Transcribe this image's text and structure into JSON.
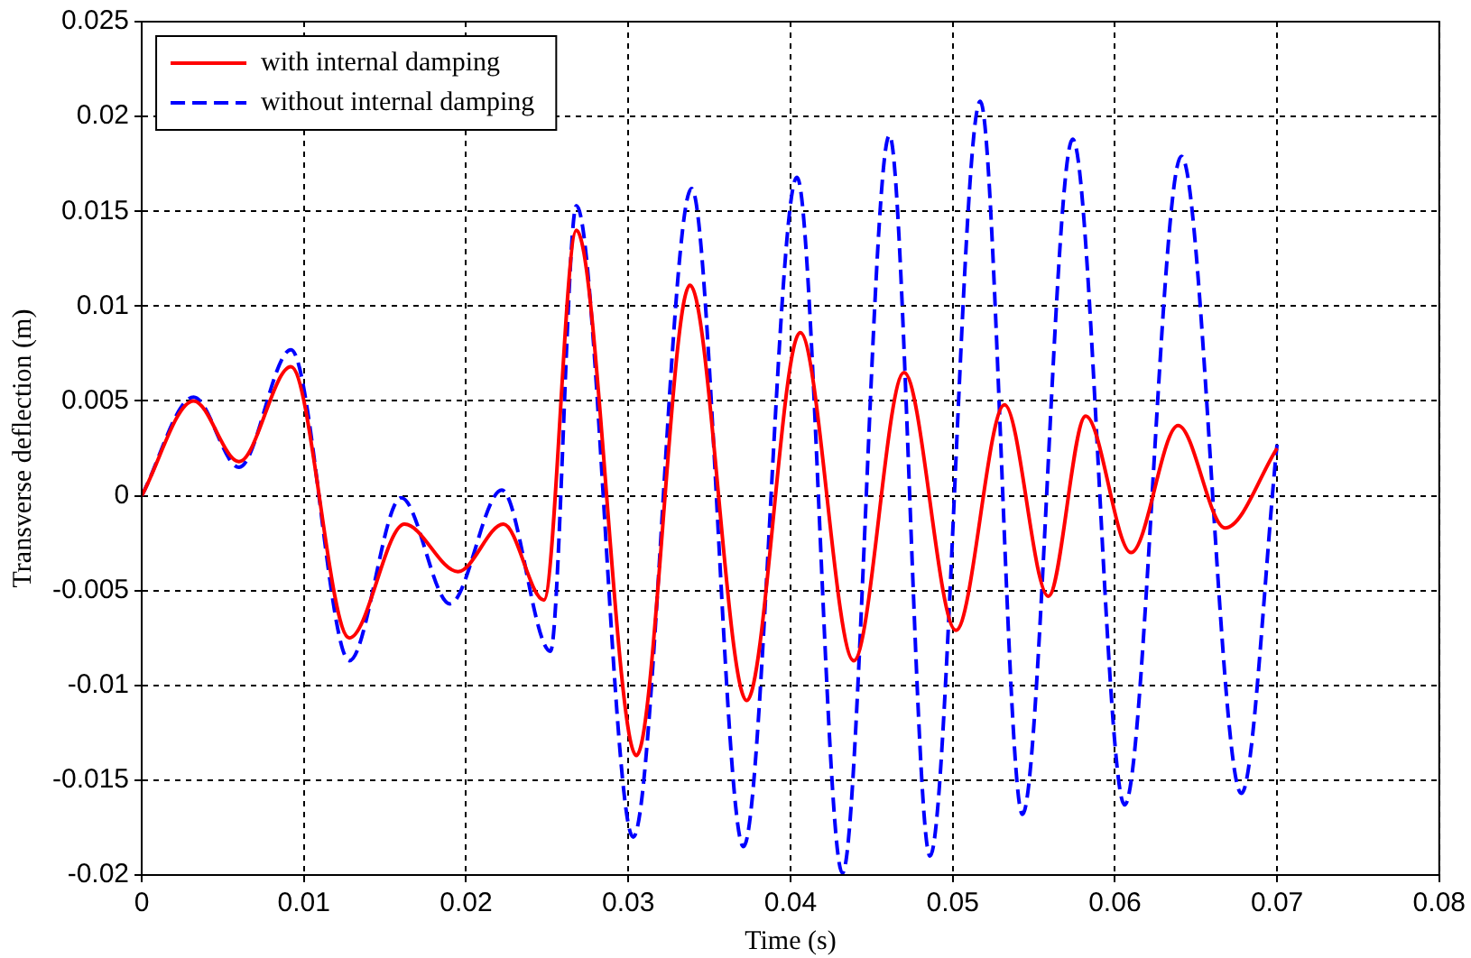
{
  "chart_data": {
    "type": "line",
    "xlabel": "Time (s)",
    "ylabel": "Transverse deflection (m)",
    "xlim": [
      0,
      0.08
    ],
    "xticks": [
      0,
      0.01,
      0.02,
      0.03,
      0.04,
      0.05,
      0.06,
      0.07,
      0.08
    ],
    "ylim": [
      -0.02,
      0.025
    ],
    "yticks": [
      -0.02,
      -0.015,
      -0.01,
      -0.005,
      0,
      0.005,
      0.01,
      0.015,
      0.02,
      0.025
    ],
    "grid": true,
    "legend": "top left",
    "marker": "none",
    "series": [
      {
        "name": "with internal damping",
        "color": "#ff0000",
        "line_style": "solid",
        "x": [
          0,
          0.0032,
          0.006,
          0.0092,
          0.0128,
          0.0162,
          0.0195,
          0.0223,
          0.0248,
          0.0268,
          0.0305,
          0.0338,
          0.0373,
          0.0406,
          0.0439,
          0.047,
          0.0502,
          0.0532,
          0.0559,
          0.0582,
          0.061,
          0.0639,
          0.0668,
          0.07
        ],
        "values": [
          0,
          0.005,
          0.0018,
          0.0068,
          -0.0075,
          -0.0015,
          -0.004,
          -0.0015,
          -0.0055,
          0.014,
          -0.0137,
          0.0111,
          -0.0108,
          0.0086,
          -0.0087,
          0.0065,
          -0.0071,
          0.0048,
          -0.0053,
          0.0042,
          -0.003,
          0.0037,
          -0.0017,
          0.0025
        ]
      },
      {
        "name": "without internal damping",
        "color": "#0000ff",
        "line_style": "dashed",
        "x": [
          0,
          0.0032,
          0.006,
          0.0092,
          0.0128,
          0.016,
          0.019,
          0.0222,
          0.0252,
          0.0268,
          0.0303,
          0.0339,
          0.0371,
          0.0404,
          0.0432,
          0.0461,
          0.0486,
          0.0517,
          0.0543,
          0.0574,
          0.0606,
          0.0641,
          0.0678,
          0.07
        ],
        "values": [
          0,
          0.0052,
          0.0015,
          0.0077,
          -0.0087,
          -0.0001,
          -0.0057,
          0.0003,
          -0.0082,
          0.0153,
          -0.018,
          0.0162,
          -0.0185,
          0.0168,
          -0.0199,
          0.019,
          -0.019,
          0.0208,
          -0.0168,
          0.0188,
          -0.0163,
          0.0179,
          -0.0157,
          0.0027
        ]
      }
    ]
  }
}
